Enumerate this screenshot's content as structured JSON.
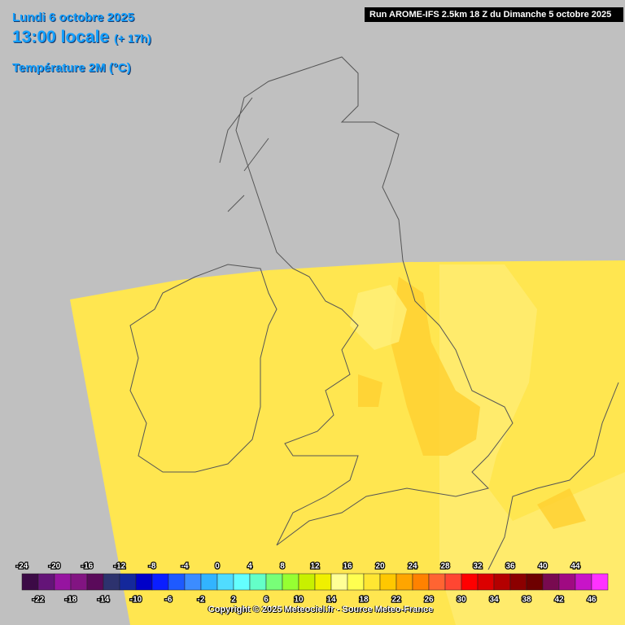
{
  "header": {
    "date": "Lundi 6 octobre 2025",
    "time": "13:00 locale",
    "offset": "(+ 17h)",
    "field": "Température 2M (°C)"
  },
  "run": "Run AROME-IFS 2.5km 18 Z du Dimanche 5 octobre 2025",
  "legend": {
    "labels": [
      -24,
      -22,
      -20,
      -18,
      -16,
      -14,
      -12,
      -10,
      -8,
      -6,
      -4,
      -2,
      0,
      2,
      4,
      6,
      8,
      10,
      12,
      14,
      16,
      18,
      20,
      22,
      24,
      26,
      28,
      30,
      32,
      34,
      36,
      38,
      40,
      42,
      44,
      46
    ],
    "colors": [
      "#3c0a46",
      "#641478",
      "#9614a0",
      "#821482",
      "#5a0a5a",
      "#2d326e",
      "#14289b",
      "#0000c8",
      "#0a1eff",
      "#1e5aff",
      "#3c8cff",
      "#32b4ff",
      "#50dcff",
      "#64ffff",
      "#64ffc8",
      "#78ff78",
      "#96ff32",
      "#c8f000",
      "#f0f000",
      "#ffff96",
      "#ffff50",
      "#ffe632",
      "#ffc800",
      "#ffa500",
      "#ff8200",
      "#ff6432",
      "#ff4632",
      "#ff0000",
      "#dc0000",
      "#b40000",
      "#8c0000",
      "#6e0000",
      "#780a50",
      "#a00a82",
      "#c814c8",
      "#ff32ff"
    ]
  },
  "copyright": "Copyright © 2025 Meteociel.fr - Source Meteo-France"
}
